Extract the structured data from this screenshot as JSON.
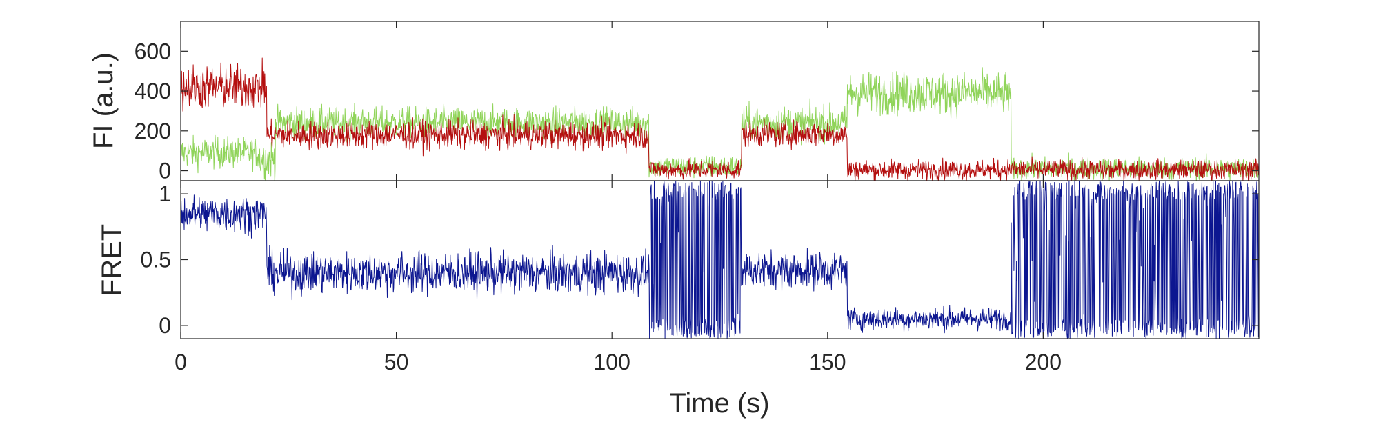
{
  "chart_data": [
    {
      "type": "line",
      "panel": "top",
      "ylabel": "FI (a.u.)",
      "xlim": [
        0,
        250
      ],
      "ylim": [
        -50,
        750
      ],
      "yticks": [
        0,
        200,
        400,
        600
      ],
      "grid": false,
      "series": [
        {
          "color": "#90d45a",
          "segments": [
            {
              "x0": 0,
              "x1": 18,
              "level": 90,
              "noise": 55
            },
            {
              "x0": 18,
              "x1": 22,
              "level": 60,
              "noise": 70
            },
            {
              "x0": 22,
              "x1": 108.5,
              "level": 240,
              "noise": 55
            },
            {
              "x0": 108.5,
              "x1": 130,
              "level": 20,
              "noise": 40
            },
            {
              "x0": 130,
              "x1": 154.5,
              "level": 240,
              "noise": 60
            },
            {
              "x0": 154.5,
              "x1": 192.5,
              "level": 390,
              "noise": 75
            },
            {
              "x0": 192.5,
              "x1": 250,
              "level": 10,
              "noise": 40
            }
          ]
        },
        {
          "color": "#b40f0f",
          "segments": [
            {
              "x0": 0,
              "x1": 20,
              "level": 420,
              "noise": 80
            },
            {
              "x0": 20,
              "x1": 108.5,
              "level": 180,
              "noise": 50
            },
            {
              "x0": 108.5,
              "x1": 130,
              "level": 5,
              "noise": 35
            },
            {
              "x0": 130,
              "x1": 154.5,
              "level": 185,
              "noise": 45
            },
            {
              "x0": 154.5,
              "x1": 250,
              "level": 5,
              "noise": 35
            }
          ]
        }
      ]
    },
    {
      "type": "line",
      "panel": "bottom",
      "xlabel": "Time (s)",
      "ylabel": "FRET",
      "xlim": [
        0,
        250
      ],
      "ylim": [
        -0.1,
        1.1
      ],
      "xticks": [
        0,
        50,
        100,
        150,
        200
      ],
      "yticks": [
        0,
        0.5,
        1
      ],
      "ytick_labels": [
        "0",
        "0.5",
        "1"
      ],
      "grid": false,
      "series": [
        {
          "color": "#0c1690",
          "segments": [
            {
              "x0": 0,
              "x1": 20,
              "level": 0.85,
              "noise": 0.1
            },
            {
              "x0": 20,
              "x1": 108.5,
              "level": 0.4,
              "noise": 0.11
            },
            {
              "x0": 108.5,
              "x1": 130,
              "level": 0.5,
              "noise": 0.5,
              "saturated": true
            },
            {
              "x0": 130,
              "x1": 154.5,
              "level": 0.42,
              "noise": 0.1
            },
            {
              "x0": 154.5,
              "x1": 192.5,
              "level": 0.05,
              "noise": 0.06
            },
            {
              "x0": 192.5,
              "x1": 250,
              "level": 0.5,
              "noise": 0.5,
              "saturated": true
            }
          ]
        }
      ]
    }
  ]
}
